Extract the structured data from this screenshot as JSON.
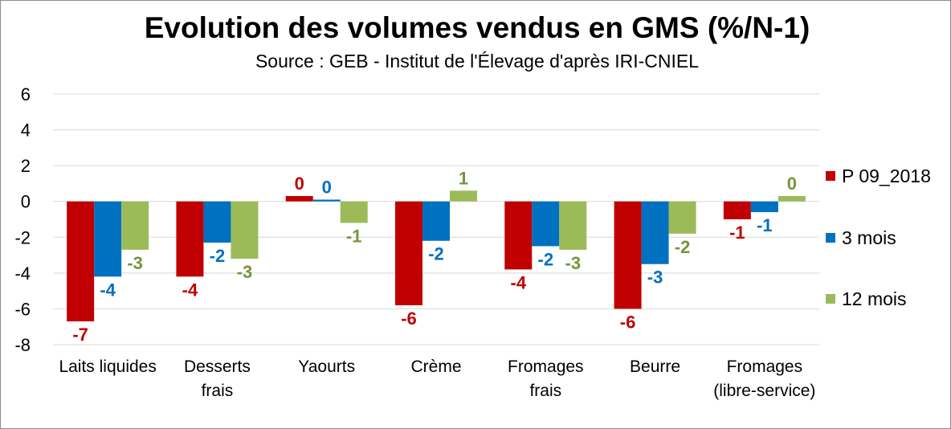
{
  "chart_data": {
    "type": "bar",
    "title": "Evolution des volumes vendus en GMS (%/N-1)",
    "subtitle": "Source : GEB - Institut de l'Élevage d'après  IRI-CNIEL",
    "categories": [
      [
        "Laits liquides"
      ],
      [
        "Desserts",
        "frais"
      ],
      [
        "Yaourts"
      ],
      [
        "Crème"
      ],
      [
        "Fromages",
        "frais"
      ],
      [
        "Beurre"
      ],
      [
        "Fromages",
        "(libre-service)"
      ]
    ],
    "ylim": [
      -8,
      6
    ],
    "yticks": [
      -8,
      -6,
      -4,
      -2,
      0,
      2,
      4,
      6
    ],
    "grid": true,
    "legend_position": "right",
    "series": [
      {
        "name": "P 09_2018",
        "color": "#c00000",
        "values": [
          -6.7,
          -4.2,
          0.3,
          -5.8,
          -3.8,
          -6.0,
          -1.0
        ],
        "labels": [
          "-7",
          "-4",
          "0",
          "-6",
          "-4",
          "-6",
          "-1"
        ]
      },
      {
        "name": "3 mois",
        "color": "#0070c0",
        "values": [
          -4.2,
          -2.3,
          0.1,
          -2.2,
          -2.5,
          -3.5,
          -0.6
        ],
        "labels": [
          "-4",
          "-2",
          "0",
          "-2",
          "-2",
          "-3",
          "-1"
        ]
      },
      {
        "name": "12 mois",
        "color": "#9bbb59",
        "label_color": "#77933c",
        "values": [
          -2.7,
          -3.2,
          -1.2,
          0.6,
          -2.7,
          -1.8,
          0.3
        ],
        "labels": [
          "-3",
          "-3",
          "-1",
          "1",
          "-3",
          "-2",
          "0"
        ]
      }
    ]
  }
}
